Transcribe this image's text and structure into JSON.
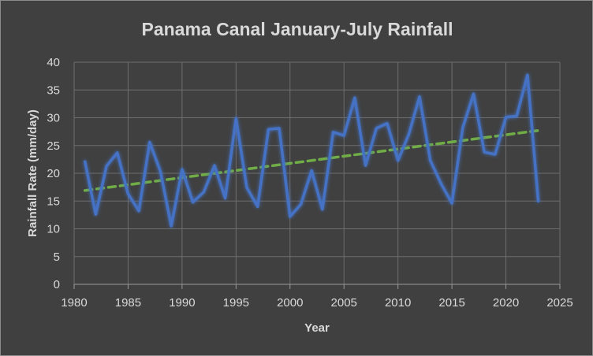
{
  "chart_data": {
    "type": "line",
    "title": "Panama Canal January-July Rainfall",
    "xlabel": "Year",
    "ylabel": "Rainfall Rate (mm/day)",
    "xlim": [
      1980,
      2025
    ],
    "ylim": [
      0,
      40
    ],
    "xticks": [
      1980,
      1985,
      1990,
      1995,
      2000,
      2005,
      2010,
      2015,
      2020,
      2025
    ],
    "yticks": [
      0,
      5,
      10,
      15,
      20,
      25,
      30,
      35,
      40
    ],
    "grid": true,
    "legend": "none",
    "series": [
      {
        "x": [
          1981,
          1982,
          1983,
          1984,
          1985,
          1986,
          1987,
          1988,
          1989,
          1990,
          1991,
          1992,
          1993,
          1994,
          1995,
          1996,
          1997,
          1998,
          1999,
          2000,
          2001,
          2002,
          2003,
          2004,
          2005,
          2006,
          2007,
          2008,
          2009,
          2010,
          2011,
          2012,
          2013,
          2014,
          2015,
          2016,
          2017,
          2018,
          2019,
          2020,
          2021,
          2022,
          2023
        ],
        "values": [
          22.1,
          12.6,
          21.3,
          23.7,
          16.3,
          13.2,
          25.6,
          20.3,
          10.5,
          20.7,
          14.8,
          16.6,
          21.4,
          15.5,
          29.9,
          17.4,
          14.0,
          27.9,
          28.1,
          12.2,
          14.4,
          20.5,
          13.5,
          27.4,
          26.8,
          33.6,
          21.4,
          28.1,
          29.0,
          22.3,
          27.0,
          33.8,
          22.3,
          18.1,
          14.6,
          28.2,
          34.3,
          23.8,
          23.4,
          30.1,
          30.3,
          37.7,
          15.0
        ],
        "color": "#4472c4"
      }
    ],
    "trendline": {
      "type": "linear",
      "x": [
        1981,
        2023
      ],
      "values": [
        16.9,
        27.7
      ],
      "color": "#70ad47"
    }
  }
}
